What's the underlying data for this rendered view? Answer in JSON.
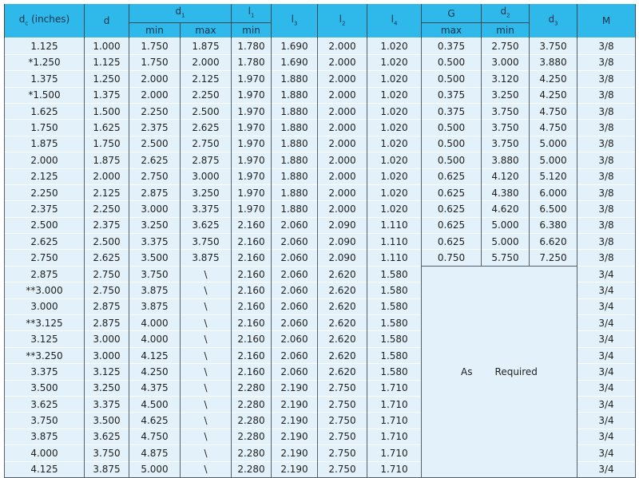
{
  "header": {
    "dc": "d",
    "dc_sub": "c",
    "dc_unit": " (inches)",
    "d": "d",
    "d1": "d",
    "d1_sub": "1",
    "d1_min": "min",
    "d1_max": "max",
    "l1": "l",
    "l1_sub": "1",
    "l1_min": "min",
    "l3": "l",
    "l3_sub": "3",
    "l2": "l",
    "l2_sub": "2",
    "l4": "l",
    "l4_sub": "4",
    "G": "G",
    "G_max": "max",
    "d2": "d",
    "d2_sub": "2",
    "d2_min": "min",
    "d3": "d",
    "d3_sub": "3",
    "M": "M"
  },
  "rows": [
    [
      "1.125",
      "1.000",
      "1.750",
      "1.875",
      "1.780",
      "1.690",
      "2.000",
      "1.020",
      "0.375",
      "2.750",
      "3.750",
      "3/8"
    ],
    [
      "*1.250",
      "1.125",
      "1.750",
      "2.000",
      "1.780",
      "1.690",
      "2.000",
      "1.020",
      "0.500",
      "3.000",
      "3.880",
      "3/8"
    ],
    [
      "1.375",
      "1.250",
      "2.000",
      "2.125",
      "1.970",
      "1.880",
      "2.000",
      "1.020",
      "0.500",
      "3.120",
      "4.250",
      "3/8"
    ],
    [
      "*1.500",
      "1.375",
      "2.000",
      "2.250",
      "1.970",
      "1.880",
      "2.000",
      "1.020",
      "0.375",
      "3.250",
      "4.250",
      "3/8"
    ],
    [
      "1.625",
      "1.500",
      "2.250",
      "2.500",
      "1.970",
      "1.880",
      "2.000",
      "1.020",
      "0.375",
      "3.750",
      "4.750",
      "3/8"
    ],
    [
      "1.750",
      "1.625",
      "2.375",
      "2.625",
      "1.970",
      "1.880",
      "2.000",
      "1.020",
      "0.500",
      "3.750",
      "4.750",
      "3/8"
    ],
    [
      "1.875",
      "1.750",
      "2.500",
      "2.750",
      "1.970",
      "1.880",
      "2.000",
      "1.020",
      "0.500",
      "3.750",
      "5.000",
      "3/8"
    ],
    [
      "2.000",
      "1.875",
      "2.625",
      "2.875",
      "1.970",
      "1.880",
      "2.000",
      "1.020",
      "0.500",
      "3.880",
      "5.000",
      "3/8"
    ],
    [
      "2.125",
      "2.000",
      "2.750",
      "3.000",
      "1.970",
      "1.880",
      "2.000",
      "1.020",
      "0.625",
      "4.120",
      "5.120",
      "3/8"
    ],
    [
      "2.250",
      "2.125",
      "2.875",
      "3.250",
      "1.970",
      "1.880",
      "2.000",
      "1.020",
      "0.625",
      "4.380",
      "6.000",
      "3/8"
    ],
    [
      "2.375",
      "2.250",
      "3.000",
      "3.375",
      "1.970",
      "1.880",
      "2.000",
      "1.020",
      "0.625",
      "4.620",
      "6.500",
      "3/8"
    ],
    [
      "2.500",
      "2.375",
      "3.250",
      "3.625",
      "2.160",
      "2.060",
      "2.090",
      "1.110",
      "0.625",
      "5.000",
      "6.380",
      "3/8"
    ],
    [
      "2.625",
      "2.500",
      "3.375",
      "3.750",
      "2.160",
      "2.060",
      "2.090",
      "1.110",
      "0.625",
      "5.000",
      "6.620",
      "3/8"
    ],
    [
      "2.750",
      "2.625",
      "3.500",
      "3.875",
      "2.160",
      "2.060",
      "2.090",
      "1.110",
      "0.750",
      "5.750",
      "7.250",
      "3/8"
    ],
    [
      "2.875",
      "2.750",
      "3.750",
      "\\",
      "2.160",
      "2.060",
      "2.620",
      "1.580",
      "3/4"
    ],
    [
      "**3.000",
      "2.750",
      "3.875",
      "\\",
      "2.160",
      "2.060",
      "2.620",
      "1.580",
      "3/4"
    ],
    [
      "3.000",
      "2.875",
      "3.875",
      "\\",
      "2.160",
      "2.060",
      "2.620",
      "1.580",
      "3/4"
    ],
    [
      "**3.125",
      "2.875",
      "4.000",
      "\\",
      "2.160",
      "2.060",
      "2.620",
      "1.580",
      "3/4"
    ],
    [
      "3.125",
      "3.000",
      "4.000",
      "\\",
      "2.160",
      "2.060",
      "2.620",
      "1.580",
      "3/4"
    ],
    [
      "**3.250",
      "3.000",
      "4.125",
      "\\",
      "2.160",
      "2.060",
      "2.620",
      "1.580",
      "3/4"
    ],
    [
      "3.375",
      "3.125",
      "4.250",
      "\\",
      "2.160",
      "2.060",
      "2.620",
      "1.580",
      "3/4"
    ],
    [
      "3.500",
      "3.250",
      "4.375",
      "\\",
      "2.280",
      "2.190",
      "2.750",
      "1.710",
      "3/4"
    ],
    [
      "3.625",
      "3.375",
      "4.500",
      "\\",
      "2.280",
      "2.190",
      "2.750",
      "1.710",
      "3/4"
    ],
    [
      "3.750",
      "3.500",
      "4.625",
      "\\",
      "2.280",
      "2.190",
      "2.750",
      "1.710",
      "3/4"
    ],
    [
      "3.875",
      "3.625",
      "4.750",
      "\\",
      "2.280",
      "2.190",
      "2.750",
      "1.710",
      "3/4"
    ],
    [
      "4.000",
      "3.750",
      "4.875",
      "\\",
      "2.280",
      "2.190",
      "2.750",
      "1.710",
      "3/4"
    ],
    [
      "4.125",
      "3.875",
      "5.000",
      "\\",
      "2.280",
      "2.190",
      "2.750",
      "1.710",
      "3/4"
    ]
  ],
  "merged_note": {
    "word1": "As",
    "word2": "Required"
  },
  "colors": {
    "header": "#2fb8ea",
    "cell": "#e3f2fa"
  }
}
